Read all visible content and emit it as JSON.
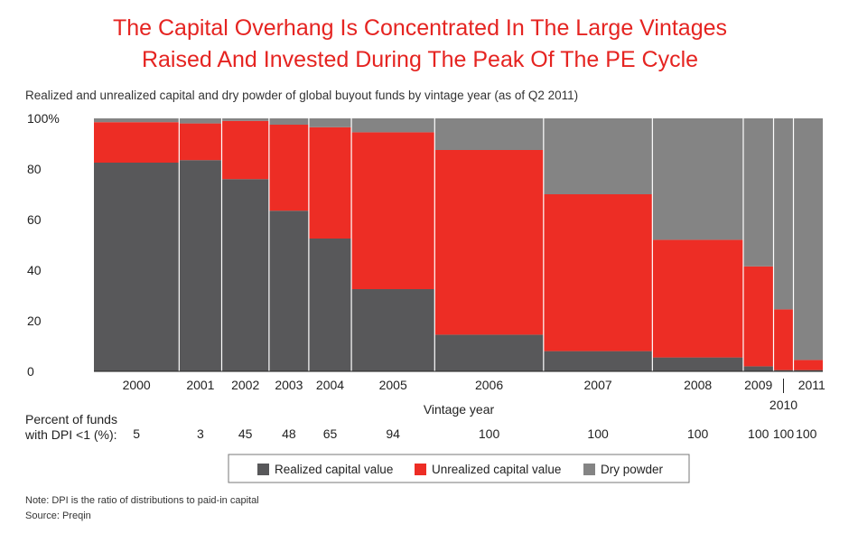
{
  "chart_data": {
    "type": "bar",
    "subtype": "marimekko-stacked",
    "title_line1": "The Capital Overhang Is Concentrated In The Large Vintages",
    "title_line2": "Raised And Invested During The Peak Of The PE Cycle",
    "subtitle": "Realized and unrealized capital and dry powder of global buyout funds by vintage year (as of Q2 2011)",
    "xlabel": "Vintage year",
    "ylim": [
      0,
      100
    ],
    "yticks": [
      "100%",
      "80",
      "60",
      "40",
      "20",
      "0"
    ],
    "ytick_values": [
      100,
      80,
      60,
      40,
      20,
      0
    ],
    "categories": [
      "2000",
      "2001",
      "2002",
      "2003",
      "2004",
      "2005",
      "2006",
      "2007",
      "2008",
      "2009",
      "2010",
      "2011"
    ],
    "relative_width": [
      9,
      4.5,
      5,
      4.2,
      4.5,
      8.8,
      11.5,
      11.5,
      9.6,
      3.2,
      2.1,
      3.1
    ],
    "series": [
      {
        "name": "Realized capital value",
        "color": "#58585a",
        "values": [
          82.5,
          83.5,
          76,
          63.5,
          52.5,
          32.5,
          14.5,
          8,
          5.5,
          2,
          0.5,
          0.5
        ]
      },
      {
        "name": "Unrealized capital value",
        "color": "#ed2d25",
        "values": [
          16,
          14.5,
          23,
          34,
          44,
          62,
          73,
          62,
          46.5,
          39.5,
          24,
          4
        ]
      },
      {
        "name": "Dry powder",
        "color": "#848484",
        "values": [
          1.5,
          2,
          1,
          2.5,
          3.5,
          5.5,
          12.5,
          30,
          48,
          58.5,
          75.5,
          95.5
        ]
      }
    ],
    "dpi_label_line1": "Percent of funds",
    "dpi_label_line2": "with DPI <1 (%):",
    "dpi_values": [
      "5",
      "3",
      "45",
      "48",
      "65",
      "94",
      "100",
      "100",
      "100",
      "100",
      "100",
      "100"
    ],
    "note": "Note: DPI is the ratio of distributions to paid-in capital",
    "source": "Source: Preqin"
  }
}
